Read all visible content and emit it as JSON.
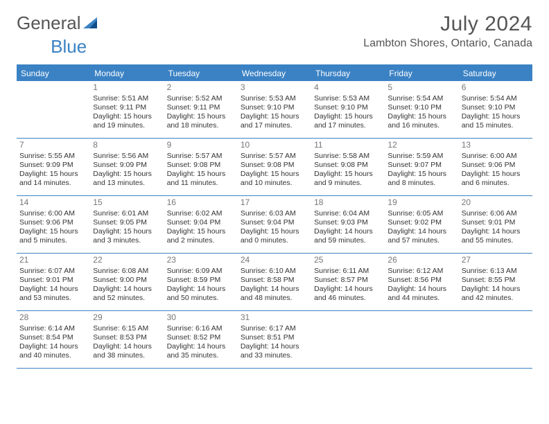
{
  "brand": {
    "name_left": "General",
    "name_right": "Blue"
  },
  "title": "July 2024",
  "location": "Lambton Shores, Ontario, Canada",
  "colors": {
    "accent": "#3b82c4",
    "triangle": "#0f4e8a",
    "text": "#333333",
    "muted": "#777777",
    "bg": "#ffffff"
  },
  "dow": [
    "Sunday",
    "Monday",
    "Tuesday",
    "Wednesday",
    "Thursday",
    "Friday",
    "Saturday"
  ],
  "labels": {
    "sunrise": "Sunrise:",
    "sunset": "Sunset:",
    "daylight": "Daylight:"
  },
  "weeks": [
    [
      null,
      {
        "d": "1",
        "sr": "5:51 AM",
        "ss": "9:11 PM",
        "dl": "15 hours and 19 minutes."
      },
      {
        "d": "2",
        "sr": "5:52 AM",
        "ss": "9:11 PM",
        "dl": "15 hours and 18 minutes."
      },
      {
        "d": "3",
        "sr": "5:53 AM",
        "ss": "9:10 PM",
        "dl": "15 hours and 17 minutes."
      },
      {
        "d": "4",
        "sr": "5:53 AM",
        "ss": "9:10 PM",
        "dl": "15 hours and 17 minutes."
      },
      {
        "d": "5",
        "sr": "5:54 AM",
        "ss": "9:10 PM",
        "dl": "15 hours and 16 minutes."
      },
      {
        "d": "6",
        "sr": "5:54 AM",
        "ss": "9:10 PM",
        "dl": "15 hours and 15 minutes."
      }
    ],
    [
      {
        "d": "7",
        "sr": "5:55 AM",
        "ss": "9:09 PM",
        "dl": "15 hours and 14 minutes."
      },
      {
        "d": "8",
        "sr": "5:56 AM",
        "ss": "9:09 PM",
        "dl": "15 hours and 13 minutes."
      },
      {
        "d": "9",
        "sr": "5:57 AM",
        "ss": "9:08 PM",
        "dl": "15 hours and 11 minutes."
      },
      {
        "d": "10",
        "sr": "5:57 AM",
        "ss": "9:08 PM",
        "dl": "15 hours and 10 minutes."
      },
      {
        "d": "11",
        "sr": "5:58 AM",
        "ss": "9:08 PM",
        "dl": "15 hours and 9 minutes."
      },
      {
        "d": "12",
        "sr": "5:59 AM",
        "ss": "9:07 PM",
        "dl": "15 hours and 8 minutes."
      },
      {
        "d": "13",
        "sr": "6:00 AM",
        "ss": "9:06 PM",
        "dl": "15 hours and 6 minutes."
      }
    ],
    [
      {
        "d": "14",
        "sr": "6:00 AM",
        "ss": "9:06 PM",
        "dl": "15 hours and 5 minutes."
      },
      {
        "d": "15",
        "sr": "6:01 AM",
        "ss": "9:05 PM",
        "dl": "15 hours and 3 minutes."
      },
      {
        "d": "16",
        "sr": "6:02 AM",
        "ss": "9:04 PM",
        "dl": "15 hours and 2 minutes."
      },
      {
        "d": "17",
        "sr": "6:03 AM",
        "ss": "9:04 PM",
        "dl": "15 hours and 0 minutes."
      },
      {
        "d": "18",
        "sr": "6:04 AM",
        "ss": "9:03 PM",
        "dl": "14 hours and 59 minutes."
      },
      {
        "d": "19",
        "sr": "6:05 AM",
        "ss": "9:02 PM",
        "dl": "14 hours and 57 minutes."
      },
      {
        "d": "20",
        "sr": "6:06 AM",
        "ss": "9:01 PM",
        "dl": "14 hours and 55 minutes."
      }
    ],
    [
      {
        "d": "21",
        "sr": "6:07 AM",
        "ss": "9:01 PM",
        "dl": "14 hours and 53 minutes."
      },
      {
        "d": "22",
        "sr": "6:08 AM",
        "ss": "9:00 PM",
        "dl": "14 hours and 52 minutes."
      },
      {
        "d": "23",
        "sr": "6:09 AM",
        "ss": "8:59 PM",
        "dl": "14 hours and 50 minutes."
      },
      {
        "d": "24",
        "sr": "6:10 AM",
        "ss": "8:58 PM",
        "dl": "14 hours and 48 minutes."
      },
      {
        "d": "25",
        "sr": "6:11 AM",
        "ss": "8:57 PM",
        "dl": "14 hours and 46 minutes."
      },
      {
        "d": "26",
        "sr": "6:12 AM",
        "ss": "8:56 PM",
        "dl": "14 hours and 44 minutes."
      },
      {
        "d": "27",
        "sr": "6:13 AM",
        "ss": "8:55 PM",
        "dl": "14 hours and 42 minutes."
      }
    ],
    [
      {
        "d": "28",
        "sr": "6:14 AM",
        "ss": "8:54 PM",
        "dl": "14 hours and 40 minutes."
      },
      {
        "d": "29",
        "sr": "6:15 AM",
        "ss": "8:53 PM",
        "dl": "14 hours and 38 minutes."
      },
      {
        "d": "30",
        "sr": "6:16 AM",
        "ss": "8:52 PM",
        "dl": "14 hours and 35 minutes."
      },
      {
        "d": "31",
        "sr": "6:17 AM",
        "ss": "8:51 PM",
        "dl": "14 hours and 33 minutes."
      },
      null,
      null,
      null
    ]
  ]
}
